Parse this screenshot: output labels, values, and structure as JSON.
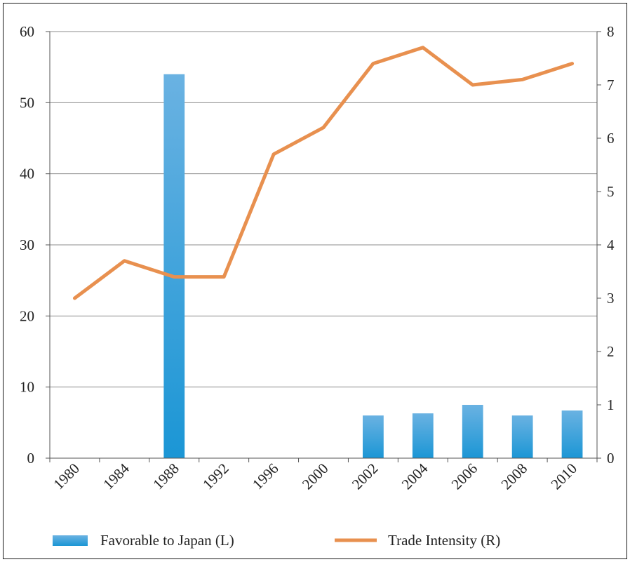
{
  "chart_data": {
    "type": "bar+line",
    "categories": [
      "1980",
      "1984",
      "1988",
      "1992",
      "1996",
      "2000",
      "2002",
      "2004",
      "2006",
      "2008",
      "2010"
    ],
    "series": [
      {
        "name": "Favorable to Japan (L)",
        "type": "bar",
        "axis": "left",
        "values": [
          null,
          null,
          54,
          null,
          null,
          null,
          6,
          6.3,
          7.5,
          6,
          6.7
        ]
      },
      {
        "name": "Trade Intensity (R)",
        "type": "line",
        "axis": "right",
        "values": [
          3.0,
          3.7,
          3.4,
          3.4,
          5.7,
          6.2,
          7.4,
          7.7,
          7.0,
          7.1,
          7.4
        ]
      }
    ],
    "left_axis": {
      "ylim": [
        0,
        60
      ],
      "ticks": [
        "0",
        "10",
        "20",
        "30",
        "40",
        "50",
        "60"
      ]
    },
    "right_axis": {
      "ylim": [
        0,
        8
      ],
      "ticks": [
        "0",
        "1",
        "2",
        "3",
        "4",
        "5",
        "6",
        "7",
        "8"
      ]
    },
    "grid": true,
    "legend_position": "bottom",
    "colors": {
      "bar_top": "#6ab2e2",
      "bar_bottom": "#1b96d5",
      "line": "#e8904f",
      "grid": "#8c8c8c",
      "axis": "#555555"
    }
  }
}
